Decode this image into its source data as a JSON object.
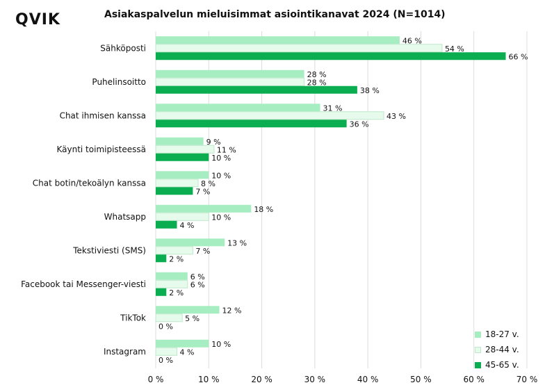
{
  "brand": {
    "logo_text": "QVIK"
  },
  "colors": {
    "s1": "#a7edc2",
    "s2": "#e6fbec",
    "s2_border": "#bfe8cb",
    "s3": "#0aad4f",
    "grid": "#dcdcdc"
  },
  "chart_data": {
    "type": "bar",
    "orientation": "horizontal",
    "title": "Asiakaspalvelun mieluisimmat asiointikanavat 2024 (N=1014)",
    "categories": [
      "Sähköposti",
      "Puhelinsoitto",
      "Chat ihmisen kanssa",
      "Käynti toimipisteessä",
      "Chat botin/tekoälyn kanssa",
      "Whatsapp",
      "Tekstiviesti (SMS)",
      "Facebook tai Messenger-viesti",
      "TikTok",
      "Instagram"
    ],
    "series": [
      {
        "name": "18-27 v.",
        "values": [
          46,
          28,
          31,
          9,
          10,
          18,
          13,
          6,
          12,
          10
        ]
      },
      {
        "name": "28-44 v.",
        "values": [
          54,
          28,
          43,
          11,
          8,
          10,
          7,
          6,
          5,
          4
        ]
      },
      {
        "name": "45-65 v.",
        "values": [
          66,
          38,
          36,
          10,
          7,
          4,
          2,
          2,
          0,
          0
        ]
      }
    ],
    "value_suffix": " %",
    "xlim": [
      0,
      70
    ],
    "xticks": [
      "0 %",
      "10 %",
      "20 %",
      "30 %",
      "40 %",
      "50 %",
      "60 %",
      "70 %"
    ],
    "grid": true,
    "legend_position": "bottom-right"
  }
}
